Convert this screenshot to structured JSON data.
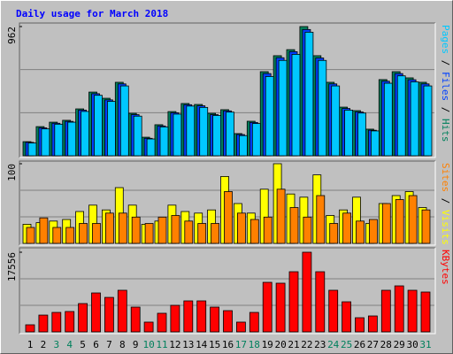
{
  "title": "Daily usage for March 2018",
  "legend_separator": " / ",
  "categories": [
    "1",
    "2",
    "3",
    "4",
    "5",
    "6",
    "7",
    "8",
    "9",
    "10",
    "11",
    "12",
    "13",
    "14",
    "15",
    "16",
    "17",
    "18",
    "19",
    "20",
    "21",
    "22",
    "23",
    "24",
    "25",
    "26",
    "27",
    "28",
    "29",
    "30",
    "31"
  ],
  "category_colors": [
    "#000000",
    "#000000",
    "#00805c",
    "#00805c",
    "#000000",
    "#000000",
    "#000000",
    "#000000",
    "#000000",
    "#00805c",
    "#00805c",
    "#000000",
    "#000000",
    "#000000",
    "#000000",
    "#000000",
    "#00805c",
    "#00805c",
    "#000000",
    "#000000",
    "#000000",
    "#000000",
    "#000000",
    "#00805c",
    "#00805c",
    "#000000",
    "#000000",
    "#000000",
    "#000000",
    "#000000",
    "#00805c"
  ],
  "chart_data": [
    {
      "type": "bar",
      "ylim": [
        0,
        962
      ],
      "yticks": [
        962
      ],
      "series": [
        {
          "name": "Hits",
          "color": "#00805c",
          "values": [
            105,
            217,
            250,
            264,
            349,
            474,
            428,
            547,
            316,
            138,
            231,
            329,
            389,
            382,
            316,
            343,
            165,
            257,
            626,
            745,
            790,
            962,
            745,
            547,
            362,
            336,
            198,
            567,
            626,
            580,
            547
          ]
        },
        {
          "name": "Files",
          "color": "#0040ff",
          "values": [
            100,
            208,
            242,
            256,
            340,
            462,
            416,
            535,
            306,
            130,
            222,
            320,
            380,
            372,
            306,
            334,
            158,
            248,
            612,
            730,
            775,
            940,
            728,
            535,
            352,
            326,
            190,
            555,
            612,
            566,
            535
          ]
        },
        {
          "name": "Pages",
          "color": "#00c8ff",
          "values": [
            95,
            200,
            235,
            250,
            330,
            450,
            405,
            520,
            295,
            125,
            215,
            310,
            370,
            360,
            300,
            325,
            150,
            240,
            590,
            710,
            755,
            920,
            710,
            520,
            340,
            318,
            185,
            540,
            595,
            550,
            520
          ]
        }
      ]
    },
    {
      "type": "bar",
      "ylim": [
        0,
        100
      ],
      "yticks": [
        100
      ],
      "series": [
        {
          "name": "Visits",
          "color": "#ffff00",
          "values": [
            24,
            26,
            28,
            30,
            40,
            48,
            42,
            70,
            48,
            24,
            28,
            48,
            40,
            38,
            42,
            84,
            50,
            38,
            68,
            100,
            62,
            58,
            86,
            35,
            42,
            58,
            25,
            50,
            60,
            65,
            45
          ]
        },
        {
          "name": "Sites",
          "color": "#ff8000",
          "values": [
            20,
            32,
            20,
            20,
            25,
            25,
            38,
            38,
            33,
            25,
            33,
            35,
            28,
            25,
            25,
            65,
            38,
            30,
            33,
            68,
            45,
            33,
            60,
            25,
            38,
            28,
            30,
            50,
            55,
            60,
            42
          ]
        }
      ]
    },
    {
      "type": "bar",
      "ylim": [
        0,
        17556
      ],
      "yticks": [
        17556
      ],
      "series": [
        {
          "name": "KBytes",
          "color": "#ff0000",
          "values": [
            1560,
            3700,
            4290,
            4490,
            6240,
            8580,
            7600,
            9170,
            5460,
            2150,
            4100,
            5850,
            6830,
            6830,
            5460,
            4680,
            2150,
            4290,
            10920,
            10730,
            13260,
            17556,
            13260,
            9170,
            6630,
            3120,
            3510,
            9170,
            10140,
            9170,
            8780
          ]
        }
      ]
    }
  ]
}
